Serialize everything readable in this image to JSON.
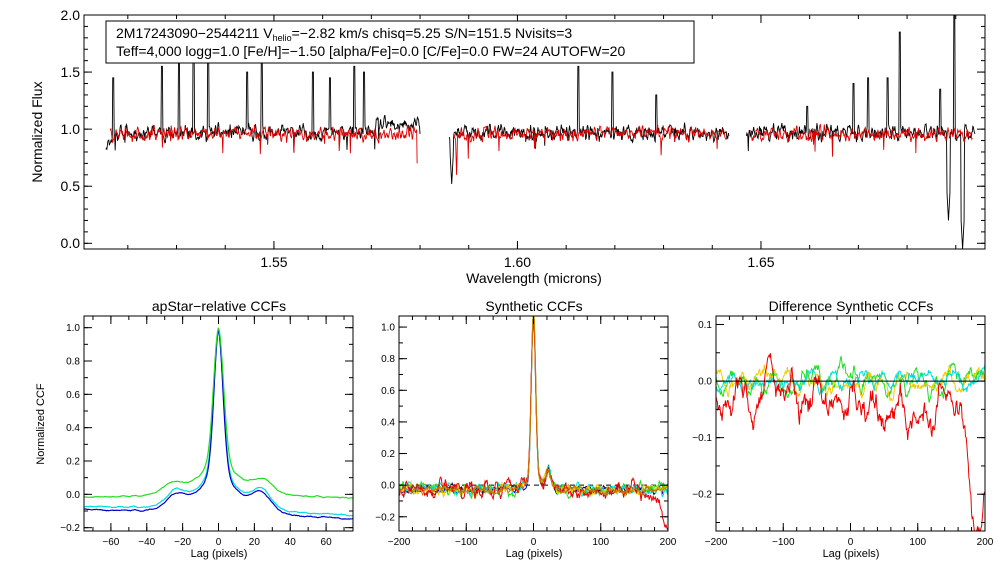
{
  "figure": {
    "info_line1": "2M17243090−2544211  V",
    "info_line1_sub": "helio",
    "info_line1_rest": "=−2.82 km/s  chisq=5.25  S/N=151.5  Nvisits=3",
    "info_line2": "Teff=4,000 logg=1.0 [Fe/H]=−1.50 [alpha/Fe]=0.0 [C/Fe]=0.0 FW=24 AUTOFW=20"
  },
  "colors": {
    "axis": "#000000",
    "observed": "#000000",
    "model": "#e00000",
    "ccf_blue": "#0000cc",
    "ccf_cyan": "#00dddd",
    "ccf_green": "#22dd22",
    "ccf_black": "#000000",
    "ccf_red": "#ee0000",
    "ccf_orange": "#cc7700",
    "ccf_yellow": "#eecc00"
  },
  "chart_data": [
    {
      "id": "spectrum",
      "type": "line",
      "title": "",
      "xlabel": "Wavelength (microns)",
      "ylabel": "Normalized Flux",
      "xlim": [
        1.511,
        1.696
      ],
      "ylim": [
        -0.05,
        2.0
      ],
      "xticks": [
        1.55,
        1.6,
        1.65
      ],
      "xtick_labels": [
        "1.55",
        "1.60",
        "1.65"
      ],
      "yticks": [
        0.0,
        0.5,
        1.0,
        1.5,
        2.0
      ],
      "ytick_labels": [
        "0.0",
        "0.5",
        "1.0",
        "1.5",
        "2.0"
      ],
      "chips": [
        [
          1.5155,
          1.58
        ],
        [
          1.586,
          1.6435
        ],
        [
          1.647,
          1.694
        ]
      ],
      "series": [
        {
          "name": "observed spectrum",
          "color": "black",
          "continuum": 0.97,
          "noise": 0.045,
          "emission_lines": [
            1.517,
            1.527,
            1.5305,
            1.5335,
            1.5365,
            1.5445,
            1.5475,
            1.558,
            1.5615,
            1.5665,
            1.5685,
            1.6125,
            1.6195,
            1.6285,
            1.6595,
            1.669,
            1.672,
            1.676,
            1.6785,
            1.6868,
            1.6897
          ],
          "emission_heights": [
            1.45,
            1.55,
            1.6,
            1.85,
            1.7,
            1.5,
            1.6,
            1.5,
            1.45,
            1.55,
            1.5,
            1.55,
            1.5,
            1.3,
            1.2,
            1.4,
            1.45,
            1.45,
            1.85,
            1.35,
            2.0
          ],
          "absorption_lines": [
            1.5865,
            1.6885,
            1.6914
          ],
          "absorption_depths": [
            0.52,
            0.2,
            -0.05
          ]
        },
        {
          "name": "model spectrum",
          "color": "red",
          "continuum": 0.96,
          "noise": 0.04,
          "absorption_lines": [
            1.5795,
            1.5875
          ],
          "absorption_depths": [
            0.55,
            0.6
          ]
        }
      ]
    },
    {
      "id": "apstar_ccf",
      "type": "line",
      "title": "apStar−relative CCFs",
      "xlabel": "Lag (pixels)",
      "ylabel": "Normalized CCF",
      "xlim": [
        -75,
        75
      ],
      "ylim": [
        -0.22,
        1.07
      ],
      "xticks": [
        -60,
        -40,
        -20,
        0,
        20,
        40,
        60
      ],
      "xtick_labels": [
        "−60",
        "−40",
        "−20",
        "0",
        "20",
        "40",
        "60"
      ],
      "yticks": [
        -0.2,
        0.0,
        0.2,
        0.4,
        0.6,
        0.8,
        1.0
      ],
      "ytick_labels": [
        "−0.2",
        "0.0",
        "0.2",
        "0.4",
        "0.6",
        "0.8",
        "1.0"
      ],
      "series": [
        {
          "name": "cyan",
          "color": "cyan",
          "peak": 0.98,
          "width": 2.6,
          "wing": 0.34,
          "wing_scale": 12,
          "side_bumps": [
            [
              -24,
              0.08
            ],
            [
              24,
              0.1
            ]
          ],
          "offset": -0.1
        },
        {
          "name": "blue",
          "color": "blue",
          "peak": 0.99,
          "width": 2.5,
          "wing": 0.35,
          "wing_scale": 12,
          "side_bumps": [
            [
              -24,
              0.07
            ],
            [
              24,
              0.1
            ]
          ],
          "offset": -0.12
        },
        {
          "name": "green",
          "color": "green",
          "peak": 1.0,
          "width": 2.8,
          "wing": 0.28,
          "wing_scale": 14,
          "side_bumps": [
            [
              -26,
              0.05
            ],
            [
              25,
              0.07
            ]
          ],
          "offset": -0.02
        }
      ]
    },
    {
      "id": "synthetic_ccf",
      "type": "line",
      "title": "Synthetic CCFs",
      "xlabel": "Lag (pixels)",
      "ylabel": "",
      "xlim": [
        -200,
        200
      ],
      "ylim": [
        -0.29,
        1.07
      ],
      "xticks": [
        -200,
        -100,
        0,
        100,
        200
      ],
      "xtick_labels": [
        "−200",
        "−100",
        "0",
        "100",
        "200"
      ],
      "yticks": [
        -0.2,
        0.0,
        0.2,
        0.4,
        0.6,
        0.8,
        1.0
      ],
      "ytick_labels": [
        "−0.2",
        "0.0",
        "0.2",
        "0.4",
        "0.6",
        "0.8",
        "1.0"
      ],
      "reference_line": {
        "y": 0.0,
        "style": "dashed"
      },
      "series": [
        {
          "name": "black",
          "color": "black",
          "peak": 1.0,
          "noise": 0.02
        },
        {
          "name": "blue",
          "color": "blue",
          "peak": 1.0,
          "noise": 0.02
        },
        {
          "name": "green",
          "color": "green",
          "peak": 0.99,
          "noise": 0.035
        },
        {
          "name": "cyan",
          "color": "cyan",
          "peak": 0.99,
          "noise": 0.03
        },
        {
          "name": "yellow",
          "color": "yellow",
          "peak": 1.0,
          "noise": 0.03
        },
        {
          "name": "red",
          "color": "red",
          "peak": 0.98,
          "noise": 0.05,
          "tail_drop": -0.23
        },
        {
          "name": "orange",
          "color": "orange",
          "peak": 1.0,
          "noise": 0.02
        }
      ]
    },
    {
      "id": "difference_ccf",
      "type": "line",
      "title": "Difference Synthetic CCFs",
      "xlabel": "Lag (pixels)",
      "ylabel": "",
      "xlim": [
        -200,
        200
      ],
      "ylim": [
        -0.265,
        0.115
      ],
      "xticks": [
        -200,
        -100,
        0,
        100,
        200
      ],
      "xtick_labels": [
        "−200",
        "−100",
        "0",
        "100",
        "200"
      ],
      "yticks": [
        -0.2,
        -0.1,
        0.0,
        0.1
      ],
      "ytick_labels": [
        "−0.2",
        "−0.1",
        "0.0",
        "0.1"
      ],
      "reference_line": {
        "y": 0.0,
        "style": "solid"
      },
      "series": [
        {
          "name": "green",
          "color": "green",
          "amp": 0.025
        },
        {
          "name": "yellow",
          "color": "yellow",
          "amp": 0.022
        },
        {
          "name": "cyan",
          "color": "cyan",
          "amp": 0.018
        },
        {
          "name": "red",
          "color": "red",
          "amp": 0.045,
          "tail_drop": -0.24
        }
      ]
    }
  ]
}
